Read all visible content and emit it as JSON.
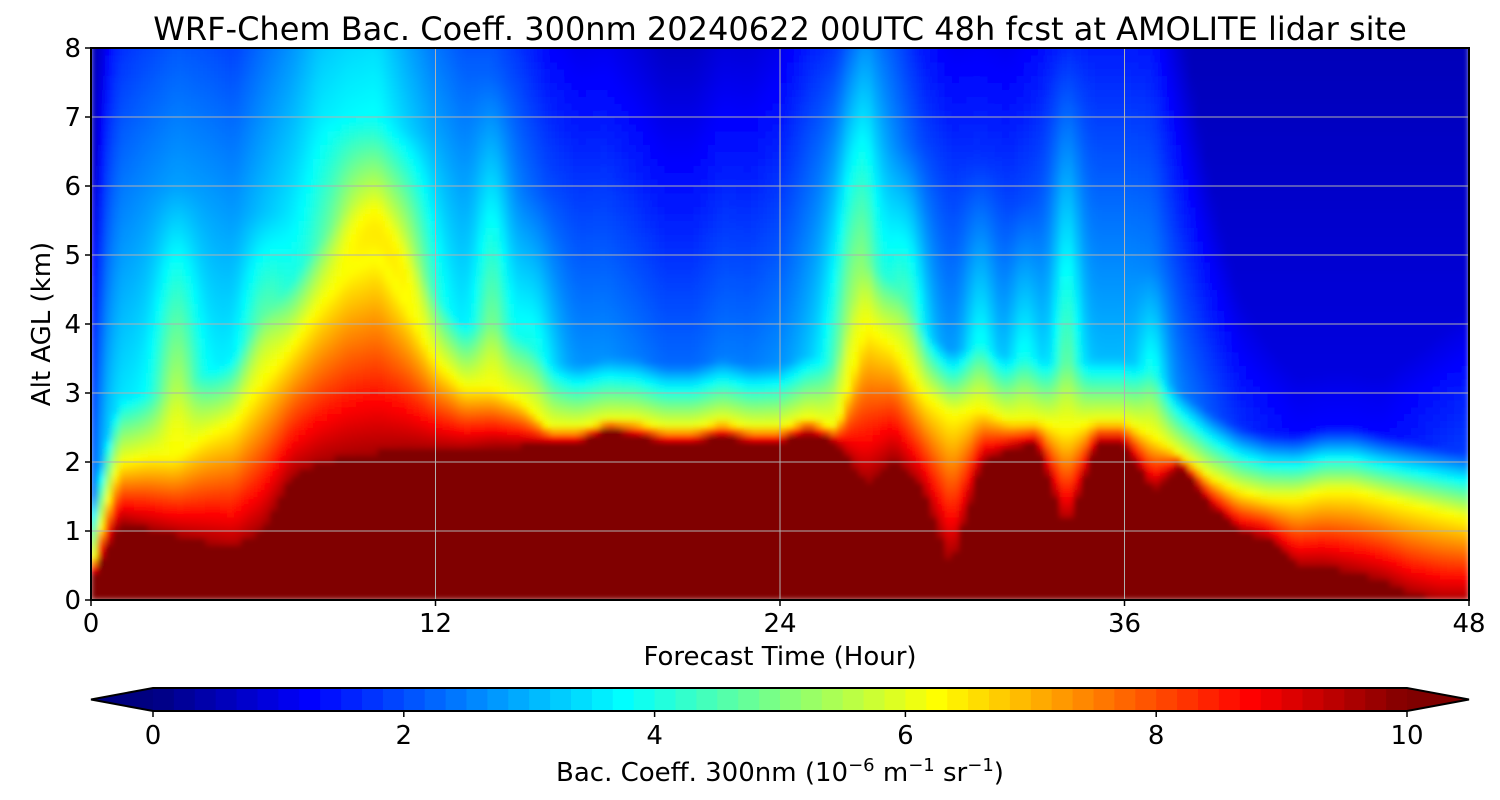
{
  "chart_data": {
    "type": "heatmap",
    "title": "WRF-Chem Bac. Coeff. 300nm  20240622 00UTC 48h fcst at AMOLITE lidar site",
    "xlabel": "Forecast Time (Hour)",
    "ylabel": "Alt AGL (km)",
    "xlim": [
      0,
      48
    ],
    "ylim": [
      0,
      8
    ],
    "x_ticks": [
      "0",
      "12",
      "24",
      "36",
      "48"
    ],
    "y_ticks": [
      "0",
      "1",
      "2",
      "3",
      "4",
      "5",
      "6",
      "7",
      "8"
    ],
    "grid": true,
    "colormap": "jet",
    "colorbar": {
      "label_main": "Bac. Coeff. 300nm  (10",
      "label_exp1": "−6",
      "label_mid": " m",
      "label_exp2": "−1",
      "label_mid2": " sr",
      "label_exp3": "−1",
      "label_end": ")",
      "range": [
        0,
        10
      ],
      "ticks": [
        "0",
        "2",
        "4",
        "6",
        "8",
        "10"
      ],
      "extend": "both"
    },
    "x": [
      0,
      0.5,
      1,
      2,
      3,
      4,
      5,
      6,
      7,
      8,
      9,
      10,
      11,
      12,
      13,
      14,
      15,
      16,
      17,
      18,
      19,
      20,
      21,
      22,
      23,
      24,
      25,
      26,
      27,
      28,
      29,
      30,
      31,
      32,
      33,
      34,
      35,
      36,
      37,
      38,
      39,
      40,
      41,
      42,
      43,
      44,
      45,
      46,
      47,
      48
    ],
    "dense_top_km": [
      0.3,
      0.7,
      1.15,
      1.05,
      0.95,
      0.85,
      0.75,
      1.05,
      1.8,
      2.0,
      2.1,
      2.15,
      2.2,
      2.2,
      2.2,
      2.25,
      2.25,
      2.3,
      2.3,
      2.5,
      2.4,
      2.3,
      2.3,
      2.4,
      2.3,
      2.3,
      2.45,
      2.3,
      1.7,
      2.1,
      1.6,
      0.5,
      2.0,
      2.2,
      2.3,
      1.0,
      2.3,
      2.3,
      1.6,
      2.0,
      1.4,
      1.0,
      0.9,
      0.5,
      0.5,
      0.4,
      0.3,
      0.1,
      0.0,
      0.0
    ],
    "mid_top_km": [
      0.4,
      1.3,
      2.0,
      2.1,
      2.1,
      2.4,
      2.6,
      3.2,
      3.7,
      4.3,
      4.8,
      5.0,
      4.3,
      3.5,
      3.1,
      3.1,
      2.9,
      2.5,
      2.5,
      2.6,
      2.6,
      2.5,
      2.5,
      2.6,
      2.5,
      2.5,
      2.65,
      2.5,
      4.0,
      3.7,
      3.0,
      2.7,
      2.8,
      2.6,
      2.6,
      2.5,
      2.6,
      2.6,
      2.4,
      2.1,
      1.8,
      1.6,
      1.5,
      1.5,
      1.6,
      1.6,
      1.5,
      1.4,
      1.3,
      1.2
    ],
    "col_bg": [
      2.5,
      3.5,
      3.8,
      4.0,
      4.2,
      4.0,
      3.8,
      4.0,
      4.2,
      4.5,
      4.5,
      4.5,
      4.2,
      4.0,
      3.8,
      3.8,
      3.5,
      3.2,
      3.0,
      3.0,
      2.8,
      2.6,
      2.6,
      2.8,
      2.8,
      3.0,
      3.4,
      3.6,
      4.0,
      3.6,
      3.2,
      3.0,
      3.0,
      3.0,
      3.2,
      3.6,
      3.4,
      3.4,
      3.4,
      2.8,
      2.4,
      2.0,
      1.8,
      1.6,
      1.6,
      1.6,
      1.6,
      1.8,
      2.0,
      2.2
    ],
    "plumes": [
      {
        "x": 3,
        "top": 5.6,
        "w": 0.7,
        "amp": 2.2
      },
      {
        "x": 6,
        "top": 5.2,
        "w": 0.8,
        "amp": 1.6
      },
      {
        "x": 9.5,
        "top": 6.6,
        "w": 1.2,
        "amp": 2.6
      },
      {
        "x": 11,
        "top": 6.4,
        "w": 1.0,
        "amp": 2.2
      },
      {
        "x": 14,
        "top": 7.2,
        "w": 0.6,
        "amp": 1.8
      },
      {
        "x": 15.5,
        "top": 5.5,
        "w": 0.8,
        "amp": 1.4
      },
      {
        "x": 26.5,
        "top": 8.0,
        "w": 0.9,
        "amp": 2.4
      },
      {
        "x": 28.5,
        "top": 6.2,
        "w": 0.7,
        "amp": 2.0
      },
      {
        "x": 31,
        "top": 6.0,
        "w": 0.6,
        "amp": 1.6
      },
      {
        "x": 32.5,
        "top": 5.4,
        "w": 0.6,
        "amp": 1.6
      },
      {
        "x": 34,
        "top": 7.5,
        "w": 0.5,
        "amp": 1.8
      },
      {
        "x": 37,
        "top": 4.4,
        "w": 0.5,
        "amp": 1.5
      }
    ]
  }
}
